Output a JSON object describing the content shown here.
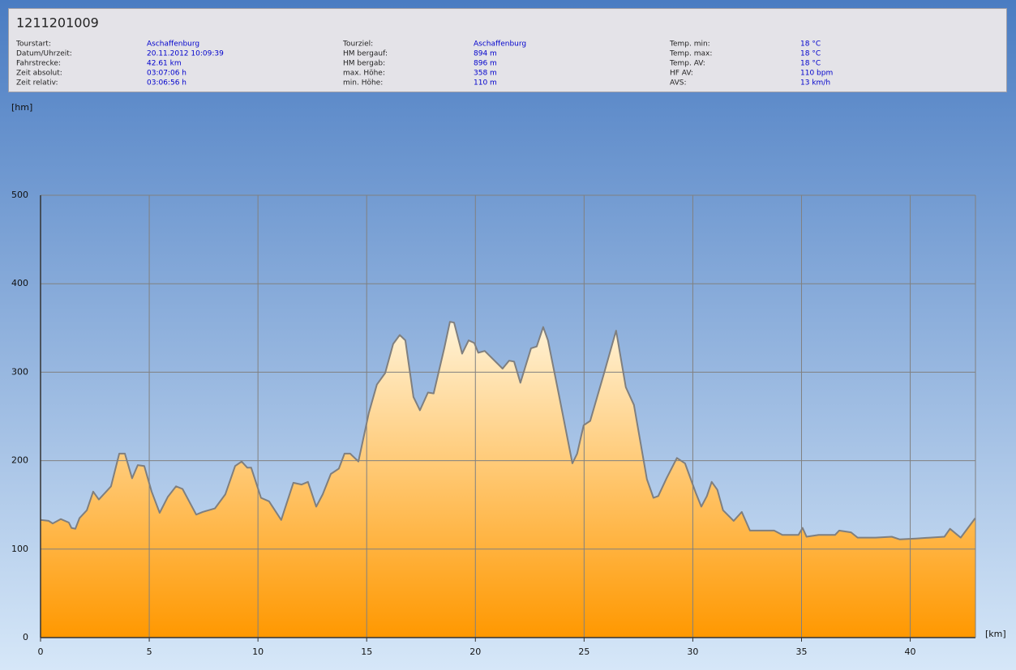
{
  "header": {
    "title": "1211201009",
    "columns": [
      [
        [
          "Tourstart:",
          "Aschaffenburg"
        ],
        [
          "Datum/Uhrzeit:",
          "20.11.2012 10:09:39"
        ],
        [
          "Fahrstrecke:",
          "42.61 km"
        ],
        [
          "Zeit absolut:",
          "03:07:06 h"
        ],
        [
          "Zeit relativ:",
          "03:06:56 h"
        ]
      ],
      [
        [
          "Tourziel:",
          "Aschaffenburg"
        ],
        [
          "HM bergauf:",
          "894 m"
        ],
        [
          "HM bergab:",
          "896 m"
        ],
        [
          "max. Höhe:",
          "358 m"
        ],
        [
          "min. Höhe:",
          "110 m"
        ]
      ],
      [
        [
          "Temp. min:",
          "18 °C"
        ],
        [
          "Temp. max:",
          "18 °C"
        ],
        [
          "Temp. AV:",
          "18 °C"
        ],
        [
          "HF AV:",
          "110 bpm"
        ],
        [
          "AVS:",
          "13 km/h"
        ]
      ]
    ]
  },
  "chart_data": {
    "type": "area",
    "xlabel": "[km]",
    "ylabel": "[hm]",
    "x": [
      0,
      0.37,
      0.56,
      0.93,
      1.3,
      1.42,
      1.6,
      1.79,
      2.13,
      2.42,
      2.68,
      2.98,
      3.24,
      3.62,
      3.88,
      4.21,
      4.47,
      4.77,
      5.11,
      5.48,
      5.85,
      6.23,
      6.53,
      7.16,
      7.46,
      8.02,
      8.5,
      8.95,
      9.25,
      9.51,
      9.69,
      10.14,
      10.51,
      11.07,
      11.63,
      12.01,
      12.3,
      12.68,
      12.98,
      13.35,
      13.72,
      13.98,
      14.24,
      14.62,
      15.1,
      15.47,
      15.85,
      16.22,
      16.52,
      16.78,
      17.15,
      17.45,
      17.82,
      18.08,
      18.57,
      18.83,
      19.02,
      19.39,
      19.69,
      19.95,
      20.13,
      20.43,
      21.25,
      21.55,
      21.78,
      22.07,
      22.56,
      22.82,
      23.12,
      23.34,
      23.86,
      24.46,
      24.68,
      24.98,
      25.28,
      25.91,
      26.47,
      26.92,
      27.29,
      27.89,
      28.19,
      28.41,
      28.79,
      29.27,
      29.64,
      30.13,
      30.39,
      30.65,
      30.87,
      31.13,
      31.39,
      31.88,
      32.25,
      32.63,
      33.18,
      33.74,
      34.12,
      34.86,
      35.05,
      35.23,
      35.79,
      36.54,
      36.73,
      37.28,
      37.58,
      38.4,
      39.15,
      39.52,
      40.27,
      41.57,
      41.83,
      42.32,
      42.99
    ],
    "values": [
      133,
      132,
      129,
      134,
      130,
      124,
      123,
      135,
      144,
      165,
      156,
      164,
      171,
      208,
      208,
      180,
      195,
      194,
      165,
      141,
      159,
      171,
      168,
      139,
      142,
      146,
      162,
      194,
      199,
      192,
      192,
      158,
      154,
      133,
      175,
      173,
      176,
      148,
      162,
      185,
      191,
      208,
      208,
      199,
      254,
      286,
      299,
      332,
      342,
      336,
      272,
      257,
      277,
      276,
      327,
      357,
      356,
      321,
      336,
      333,
      322,
      324,
      304,
      313,
      312,
      288,
      327,
      329,
      351,
      336,
      272,
      197,
      208,
      240,
      245,
      298,
      347,
      283,
      263,
      179,
      158,
      160,
      180,
      203,
      197,
      164,
      148,
      160,
      176,
      167,
      144,
      132,
      142,
      121,
      121,
      121,
      116,
      116,
      124,
      114,
      116,
      116,
      121,
      119,
      113,
      113,
      114,
      111,
      112,
      114,
      123,
      113,
      135
    ],
    "xlim": [
      0,
      43
    ],
    "ylim": [
      0,
      500
    ],
    "xticks": [
      0,
      5,
      10,
      15,
      20,
      25,
      30,
      35,
      40
    ],
    "yticks": [
      0,
      100,
      200,
      300,
      400,
      500
    ],
    "grid": true,
    "color": "#ff9900"
  }
}
